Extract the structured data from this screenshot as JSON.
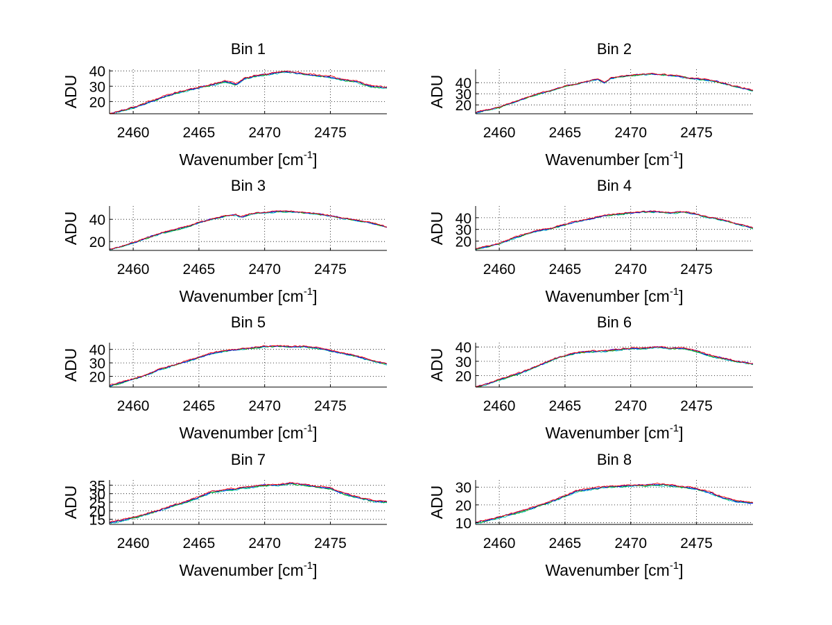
{
  "chart_data": [
    {
      "type": "line",
      "title": "Bin 1",
      "xlabel": "Wavenumber [cm",
      "xlabel_sup": "-1",
      "xlabel_close": "]",
      "ylabel": "ADU",
      "xlim": [
        2458.2,
        2479.3
      ],
      "ylim": [
        12,
        41
      ],
      "xticks": [
        2460,
        2465,
        2470,
        2475
      ],
      "yticks": [
        20,
        30,
        40
      ],
      "ytick_labels": [
        "20",
        "30",
        "40"
      ],
      "grid": true,
      "series": [
        {
          "name": "cyan",
          "color": "#00bfbf"
        },
        {
          "name": "green",
          "color": "#00a000"
        },
        {
          "name": "blue",
          "color": "#0000ff"
        },
        {
          "name": "red",
          "color": "#ff0000"
        }
      ],
      "anchors": [
        [
          2458.2,
          12
        ],
        [
          2459,
          13.5
        ],
        [
          2460,
          16
        ],
        [
          2461,
          19
        ],
        [
          2462,
          22
        ],
        [
          2463,
          25
        ],
        [
          2464,
          27
        ],
        [
          2465,
          29
        ],
        [
          2466,
          31
        ],
        [
          2467,
          33
        ],
        [
          2467.5,
          32
        ],
        [
          2467.8,
          31
        ],
        [
          2468.5,
          35
        ],
        [
          2469.5,
          37
        ],
        [
          2470.5,
          38
        ],
        [
          2471.5,
          39.5
        ],
        [
          2472,
          39
        ],
        [
          2473,
          38
        ],
        [
          2474,
          37
        ],
        [
          2475,
          36
        ],
        [
          2476,
          34
        ],
        [
          2477,
          33
        ],
        [
          2478,
          30
        ],
        [
          2479.3,
          29
        ]
      ],
      "noise": 0.7
    },
    {
      "type": "line",
      "title": "Bin 2",
      "xlabel": "Wavenumber [cm",
      "xlabel_sup": "-1",
      "xlabel_close": "]",
      "ylabel": "ADU",
      "xlim": [
        2458.2,
        2479.3
      ],
      "ylim": [
        12,
        52
      ],
      "xticks": [
        2460,
        2465,
        2470,
        2475
      ],
      "yticks": [
        20,
        30,
        40
      ],
      "ytick_labels": [
        "20",
        "30",
        "40"
      ],
      "grid": true,
      "series": [
        {
          "name": "cyan",
          "color": "#00bfbf"
        },
        {
          "name": "green",
          "color": "#00a000"
        },
        {
          "name": "blue",
          "color": "#0000ff"
        },
        {
          "name": "red",
          "color": "#ff0000"
        }
      ],
      "anchors": [
        [
          2458.2,
          13
        ],
        [
          2459,
          15
        ],
        [
          2460,
          18
        ],
        [
          2461,
          22
        ],
        [
          2462,
          26
        ],
        [
          2463,
          30
        ],
        [
          2464,
          33
        ],
        [
          2465,
          37
        ],
        [
          2466,
          39
        ],
        [
          2467,
          42
        ],
        [
          2467.5,
          43
        ],
        [
          2468,
          40
        ],
        [
          2468.5,
          44
        ],
        [
          2469.5,
          46
        ],
        [
          2470.5,
          47
        ],
        [
          2471.5,
          48
        ],
        [
          2472.5,
          47
        ],
        [
          2473.5,
          46
        ],
        [
          2474.5,
          44
        ],
        [
          2475.5,
          43
        ],
        [
          2476.5,
          41
        ],
        [
          2477.5,
          38
        ],
        [
          2478.5,
          35
        ],
        [
          2479.3,
          33
        ]
      ],
      "noise": 0.8
    },
    {
      "type": "line",
      "title": "Bin 3",
      "xlabel": "Wavenumber [cm",
      "xlabel_sup": "-1",
      "xlabel_close": "]",
      "ylabel": "ADU",
      "xlim": [
        2458.2,
        2479.3
      ],
      "ylim": [
        12,
        52
      ],
      "xticks": [
        2460,
        2465,
        2470,
        2475
      ],
      "yticks": [
        20,
        40
      ],
      "ytick_labels": [
        "20",
        "40"
      ],
      "grid": true,
      "series": [
        {
          "name": "cyan",
          "color": "#00bfbf"
        },
        {
          "name": "green",
          "color": "#00a000"
        },
        {
          "name": "blue",
          "color": "#0000ff"
        },
        {
          "name": "red",
          "color": "#ff0000"
        }
      ],
      "anchors": [
        [
          2458.2,
          13
        ],
        [
          2459,
          15
        ],
        [
          2460,
          19
        ],
        [
          2461,
          23
        ],
        [
          2462,
          27
        ],
        [
          2463,
          30
        ],
        [
          2464,
          33
        ],
        [
          2465,
          37
        ],
        [
          2466,
          40
        ],
        [
          2467,
          43
        ],
        [
          2467.8,
          44
        ],
        [
          2468.2,
          42
        ],
        [
          2469,
          45
        ],
        [
          2470,
          46
        ],
        [
          2471,
          47
        ],
        [
          2472,
          47
        ],
        [
          2473,
          46
        ],
        [
          2474,
          45
        ],
        [
          2475,
          43
        ],
        [
          2476,
          41
        ],
        [
          2477,
          39
        ],
        [
          2478,
          37
        ],
        [
          2479.3,
          33
        ]
      ],
      "noise": 0.8
    },
    {
      "type": "line",
      "title": "Bin 4",
      "xlabel": "Wavenumber [cm",
      "xlabel_sup": "-1",
      "xlabel_close": "]",
      "ylabel": "ADU",
      "xlim": [
        2458.2,
        2479.3
      ],
      "ylim": [
        12,
        50
      ],
      "xticks": [
        2460,
        2465,
        2470,
        2475
      ],
      "yticks": [
        20,
        30,
        40
      ],
      "ytick_labels": [
        "20",
        "30",
        "40"
      ],
      "grid": true,
      "series": [
        {
          "name": "cyan",
          "color": "#00bfbf"
        },
        {
          "name": "green",
          "color": "#00a000"
        },
        {
          "name": "blue",
          "color": "#0000ff"
        },
        {
          "name": "red",
          "color": "#ff0000"
        }
      ],
      "anchors": [
        [
          2458.2,
          13
        ],
        [
          2459,
          15
        ],
        [
          2460,
          18
        ],
        [
          2461,
          22
        ],
        [
          2462,
          26
        ],
        [
          2463,
          29
        ],
        [
          2464,
          31
        ],
        [
          2465,
          34
        ],
        [
          2466,
          37
        ],
        [
          2467,
          39
        ],
        [
          2468,
          42
        ],
        [
          2469,
          43
        ],
        [
          2470,
          44
        ],
        [
          2471,
          45
        ],
        [
          2472,
          45
        ],
        [
          2473,
          44
        ],
        [
          2474,
          45
        ],
        [
          2475,
          43
        ],
        [
          2476,
          40
        ],
        [
          2477,
          38
        ],
        [
          2478,
          35
        ],
        [
          2479.3,
          31
        ]
      ],
      "noise": 0.8
    },
    {
      "type": "line",
      "title": "Bin 5",
      "xlabel": "Wavenumber [cm",
      "xlabel_sup": "-1",
      "xlabel_close": "]",
      "ylabel": "ADU",
      "xlim": [
        2458.2,
        2479.3
      ],
      "ylim": [
        12,
        45
      ],
      "xticks": [
        2460,
        2465,
        2470,
        2475
      ],
      "yticks": [
        20,
        30,
        40
      ],
      "ytick_labels": [
        "20",
        "30",
        "40"
      ],
      "grid": true,
      "series": [
        {
          "name": "cyan",
          "color": "#00bfbf"
        },
        {
          "name": "green",
          "color": "#00a000"
        },
        {
          "name": "blue",
          "color": "#0000ff"
        },
        {
          "name": "red",
          "color": "#ff0000"
        }
      ],
      "anchors": [
        [
          2458.2,
          13
        ],
        [
          2459,
          15
        ],
        [
          2460,
          18
        ],
        [
          2461,
          21
        ],
        [
          2462,
          25
        ],
        [
          2463,
          28
        ],
        [
          2464,
          31
        ],
        [
          2465,
          34
        ],
        [
          2466,
          37
        ],
        [
          2467,
          39
        ],
        [
          2468,
          40
        ],
        [
          2469,
          41
        ],
        [
          2470,
          42
        ],
        [
          2471,
          42.5
        ],
        [
          2472,
          42
        ],
        [
          2473,
          42
        ],
        [
          2474,
          41
        ],
        [
          2475,
          39
        ],
        [
          2476,
          37
        ],
        [
          2477,
          35
        ],
        [
          2478,
          32
        ],
        [
          2479.3,
          29
        ]
      ],
      "noise": 0.7
    },
    {
      "type": "line",
      "title": "Bin 6",
      "xlabel": "Wavenumber [cm",
      "xlabel_sup": "-1",
      "xlabel_close": "]",
      "ylabel": "ADU",
      "xlim": [
        2458.2,
        2479.3
      ],
      "ylim": [
        12,
        43
      ],
      "xticks": [
        2460,
        2465,
        2470,
        2475
      ],
      "yticks": [
        20,
        30,
        40
      ],
      "ytick_labels": [
        "20",
        "30",
        "40"
      ],
      "grid": true,
      "series": [
        {
          "name": "cyan",
          "color": "#00bfbf"
        },
        {
          "name": "green",
          "color": "#00a000"
        },
        {
          "name": "blue",
          "color": "#0000ff"
        },
        {
          "name": "red",
          "color": "#ff0000"
        }
      ],
      "anchors": [
        [
          2458.2,
          12
        ],
        [
          2459,
          14
        ],
        [
          2460,
          17
        ],
        [
          2461,
          20
        ],
        [
          2462,
          23
        ],
        [
          2463,
          27
        ],
        [
          2464,
          31
        ],
        [
          2465,
          34
        ],
        [
          2466,
          36
        ],
        [
          2467,
          37
        ],
        [
          2468,
          37
        ],
        [
          2469,
          38
        ],
        [
          2470,
          39
        ],
        [
          2471,
          39
        ],
        [
          2472,
          40
        ],
        [
          2473,
          39
        ],
        [
          2474,
          39
        ],
        [
          2475,
          37
        ],
        [
          2476,
          34
        ],
        [
          2477,
          32
        ],
        [
          2478,
          30
        ],
        [
          2479.3,
          28
        ]
      ],
      "noise": 0.7
    },
    {
      "type": "line",
      "title": "Bin 7",
      "xlabel": "Wavenumber [cm",
      "xlabel_sup": "-1",
      "xlabel_close": "]",
      "ylabel": "ADU",
      "xlim": [
        2458.2,
        2479.3
      ],
      "ylim": [
        12,
        38
      ],
      "xticks": [
        2460,
        2465,
        2470,
        2475
      ],
      "yticks": [
        15,
        20,
        25,
        30,
        35
      ],
      "ytick_labels": [
        "15",
        "20",
        "25",
        "30",
        "35"
      ],
      "grid": true,
      "series": [
        {
          "name": "cyan",
          "color": "#00bfbf"
        },
        {
          "name": "green",
          "color": "#00a000"
        },
        {
          "name": "blue",
          "color": "#0000ff"
        },
        {
          "name": "red",
          "color": "#ff0000"
        }
      ],
      "anchors": [
        [
          2458.2,
          13
        ],
        [
          2459,
          14
        ],
        [
          2460,
          16
        ],
        [
          2461,
          18
        ],
        [
          2462,
          20
        ],
        [
          2463,
          23
        ],
        [
          2464,
          25
        ],
        [
          2465,
          28
        ],
        [
          2466,
          31
        ],
        [
          2467,
          32
        ],
        [
          2468,
          33
        ],
        [
          2469,
          34
        ],
        [
          2470,
          35
        ],
        [
          2471,
          35
        ],
        [
          2472,
          36
        ],
        [
          2473,
          35
        ],
        [
          2474,
          34
        ],
        [
          2475,
          33
        ],
        [
          2476,
          30
        ],
        [
          2477,
          28
        ],
        [
          2478,
          26
        ],
        [
          2479.3,
          25
        ]
      ],
      "noise": 0.6
    },
    {
      "type": "line",
      "title": "Bin 8",
      "xlabel": "Wavenumber [cm",
      "xlabel_sup": "-1",
      "xlabel_close": "]",
      "ylabel": "ADU",
      "xlim": [
        2458.2,
        2479.3
      ],
      "ylim": [
        9,
        34
      ],
      "xticks": [
        2460,
        2465,
        2470,
        2475
      ],
      "yticks": [
        10,
        20,
        30
      ],
      "ytick_labels": [
        "10",
        "20",
        "30"
      ],
      "grid": true,
      "series": [
        {
          "name": "cyan",
          "color": "#00bfbf"
        },
        {
          "name": "green",
          "color": "#00a000"
        },
        {
          "name": "blue",
          "color": "#0000ff"
        },
        {
          "name": "red",
          "color": "#ff0000"
        }
      ],
      "anchors": [
        [
          2458.2,
          10
        ],
        [
          2459,
          11
        ],
        [
          2460,
          13
        ],
        [
          2461,
          15
        ],
        [
          2462,
          17
        ],
        [
          2463,
          19.5
        ],
        [
          2464,
          22
        ],
        [
          2465,
          25
        ],
        [
          2466,
          28
        ],
        [
          2467,
          29
        ],
        [
          2468,
          30
        ],
        [
          2469,
          30.5
        ],
        [
          2470,
          31
        ],
        [
          2471,
          31
        ],
        [
          2472,
          31.5
        ],
        [
          2473,
          31
        ],
        [
          2474,
          30
        ],
        [
          2475,
          29
        ],
        [
          2476,
          27
        ],
        [
          2477,
          24
        ],
        [
          2478,
          22
        ],
        [
          2479.3,
          21
        ]
      ],
      "noise": 0.6
    }
  ]
}
